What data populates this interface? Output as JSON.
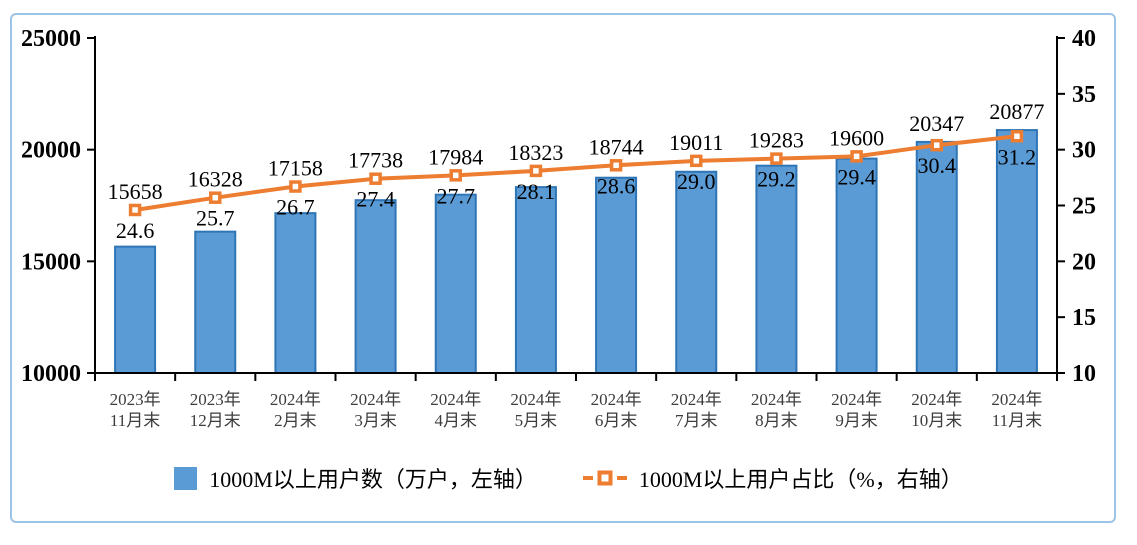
{
  "chart_data": {
    "type": "bar",
    "subtype": "bar-line-combo",
    "title": "",
    "categories": [
      [
        "2023年",
        "11月末"
      ],
      [
        "2023年",
        "12月末"
      ],
      [
        "2024年",
        "2月末"
      ],
      [
        "2024年",
        "3月末"
      ],
      [
        "2024年",
        "4月末"
      ],
      [
        "2024年",
        "5月末"
      ],
      [
        "2024年",
        "6月末"
      ],
      [
        "2024年",
        "7月末"
      ],
      [
        "2024年",
        "8月末"
      ],
      [
        "2024年",
        "9月末"
      ],
      [
        "2024年",
        "10月末"
      ],
      [
        "2024年",
        "11月末"
      ]
    ],
    "series": [
      {
        "name": "1000M以上用户数（万户，左轴）",
        "type": "bar",
        "axis": "left",
        "values": [
          15658,
          16328,
          17158,
          17738,
          17984,
          18323,
          18744,
          19011,
          19283,
          19600,
          20347,
          20877
        ],
        "fill_color": "#5B9BD5",
        "stroke_color": "#2E75B6"
      },
      {
        "name": "1000M以上用户占比（%，右轴）",
        "type": "line",
        "axis": "right",
        "values": [
          24.6,
          25.7,
          26.7,
          27.4,
          27.7,
          28.1,
          28.6,
          29.0,
          29.2,
          29.4,
          30.4,
          31.2
        ],
        "value_decimals": 1,
        "line_color": "#ED7D31",
        "marker_fill": "#FFFFFF"
      }
    ],
    "left_axis": {
      "min": 10000,
      "max": 25000,
      "ticks": [
        10000,
        15000,
        20000,
        25000
      ]
    },
    "right_axis": {
      "min": 10,
      "max": 40,
      "ticks": [
        10,
        15,
        20,
        25,
        30,
        35,
        40
      ]
    },
    "grid": false,
    "legend_position": "bottom",
    "frame_border_color": "#9DC3E6",
    "axis_line_color": "#000000",
    "label_color": "#000000",
    "category_label_color": "#3d3d3d"
  }
}
